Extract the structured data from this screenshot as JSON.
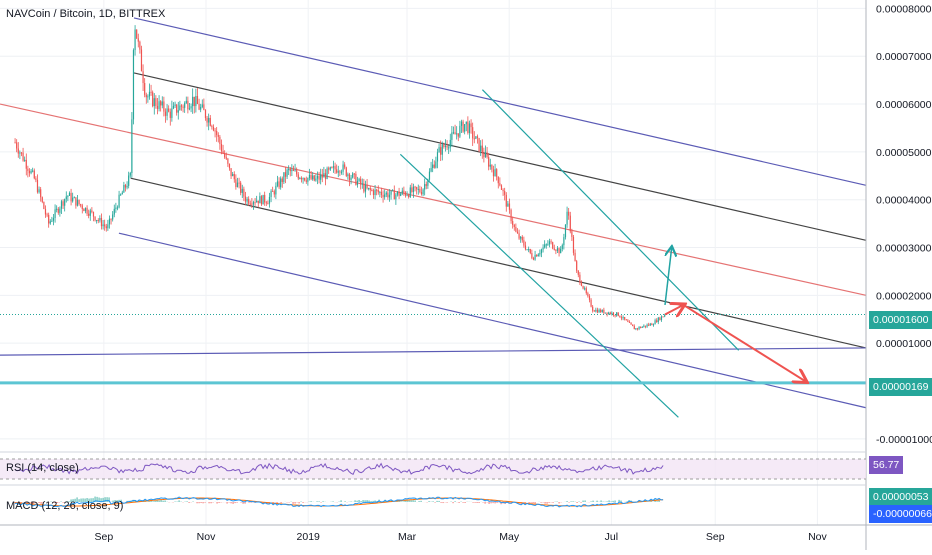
{
  "header": {
    "symbol_title": "NAVCoin / Bitcoin, 1D, BITTREX"
  },
  "colors": {
    "up": "#26a69a",
    "down": "#ef5350",
    "outer_channel": "#5b5bb5",
    "inner_channel": "#444444",
    "mid_line": "#e57373",
    "teal": "#22a3a3",
    "support": "#5cc5d3",
    "last_price": "#26a69a",
    "rsi": "#7e57c2",
    "macd": "#2196f3",
    "signal": "#ff6d00"
  },
  "chart_data": {
    "type": "candlestick",
    "title": "NAVCoin / Bitcoin, 1D, BITTREX",
    "x_ticks": [
      "Sep",
      "Nov",
      "2019",
      "Mar",
      "May",
      "Jul",
      "Sep",
      "Nov"
    ],
    "y_ticks": [
      "0.00008000",
      "0.00007000",
      "0.00006000",
      "0.00005000",
      "0.00004000",
      "0.00003000",
      "0.00002000",
      "0.00001000",
      "-0.00001000"
    ],
    "ylim": [
      -1.15e-05,
      8.05e-05
    ],
    "last_price": "0.00001600",
    "support_level": "0.00000169",
    "grid": true,
    "price_path": [
      [
        "2018-07-10",
        5.2e-05
      ],
      [
        "2018-07-22",
        4.4e-05
      ],
      [
        "2018-07-30",
        3.5e-05
      ],
      [
        "2018-08-10",
        4.1e-05
      ],
      [
        "2018-08-25",
        3.7e-05
      ],
      [
        "2018-09-03",
        3.4e-05
      ],
      [
        "2018-09-10",
        4e-05
      ],
      [
        "2018-09-17",
        4.5e-05
      ],
      [
        "2018-09-19",
        7.8e-05
      ],
      [
        "2018-09-26",
        6.2e-05
      ],
      [
        "2018-10-10",
        5.8e-05
      ],
      [
        "2018-10-24",
        6.1e-05
      ],
      [
        "2018-11-05",
        5.6e-05
      ],
      [
        "2018-11-15",
        4.6e-05
      ],
      [
        "2018-11-25",
        4e-05
      ],
      [
        "2018-12-08",
        4e-05
      ],
      [
        "2018-12-20",
        4.6e-05
      ],
      [
        "2019-01-05",
        4.4e-05
      ],
      [
        "2019-01-20",
        4.7e-05
      ],
      [
        "2019-02-05",
        4.2e-05
      ],
      [
        "2019-02-20",
        4.1e-05
      ],
      [
        "2019-03-10",
        4.2e-05
      ],
      [
        "2019-03-20",
        5e-05
      ],
      [
        "2019-04-05",
        5.6e-05
      ],
      [
        "2019-04-15",
        5e-05
      ],
      [
        "2019-04-25",
        4.4e-05
      ],
      [
        "2019-05-05",
        3.3e-05
      ],
      [
        "2019-05-15",
        2.8e-05
      ],
      [
        "2019-05-25",
        3.1e-05
      ],
      [
        "2019-06-01",
        2.9e-05
      ],
      [
        "2019-06-05",
        3.8e-05
      ],
      [
        "2019-06-10",
        2.5e-05
      ],
      [
        "2019-06-20",
        1.7e-05
      ],
      [
        "2019-07-05",
        1.6e-05
      ],
      [
        "2019-07-15",
        1.3e-05
      ],
      [
        "2019-07-25",
        1.4e-05
      ],
      [
        "2019-08-02",
        1.6e-05
      ]
    ],
    "drawings": [
      {
        "kind": "outer-channel",
        "from": [
          "2018-09-19",
          7.8e-05
        ],
        "to": [
          "2019-11-30",
          4.3e-05
        ]
      },
      {
        "kind": "outer-channel",
        "from": [
          "2018-09-10",
          3.3e-05
        ],
        "to": [
          "2019-11-30",
          -3.5e-06
        ]
      },
      {
        "kind": "inner-channel",
        "from": [
          "2018-09-19",
          6.65e-05
        ],
        "to": [
          "2019-11-30",
          3.15e-05
        ]
      },
      {
        "kind": "inner-channel",
        "from": [
          "2018-09-17",
          4.45e-05
        ],
        "to": [
          "2019-11-30",
          9e-06
        ]
      },
      {
        "kind": "mid-line",
        "from": [
          "2018-07-01",
          6e-05
        ],
        "to": [
          "2019-11-30",
          2e-05
        ]
      },
      {
        "kind": "flat-line",
        "from": [
          "2018-07-01",
          7.5e-06
        ],
        "to": [
          "2019-11-30",
          9e-06
        ]
      },
      {
        "kind": "teal-channel",
        "from": [
          "2019-04-15",
          6.3e-05
        ],
        "to": [
          "2019-09-15",
          8.5e-06
        ]
      },
      {
        "kind": "teal-channel",
        "from": [
          "2019-02-25",
          4.95e-05
        ],
        "to": [
          "2019-08-10",
          -5.5e-06
        ]
      }
    ],
    "arrows": [
      {
        "color": "teal",
        "from": [
          "2019-08-02",
          1.8e-05
        ],
        "to": [
          "2019-08-06",
          3e-05
        ]
      },
      {
        "color": "red",
        "from": [
          "2019-08-02",
          1.6e-05
        ],
        "to": [
          "2019-08-13",
          1.8e-05
        ]
      },
      {
        "color": "red",
        "from": [
          "2019-08-13",
          1.8e-05
        ],
        "to": [
          "2019-10-25",
          2e-06
        ]
      }
    ]
  },
  "rsi": {
    "label": "RSI (14, close)",
    "value": "56.77"
  },
  "macd": {
    "label": "MACD (12, 26, close, 9)",
    "values": [
      "0.00000053",
      "-0.00000066"
    ]
  }
}
